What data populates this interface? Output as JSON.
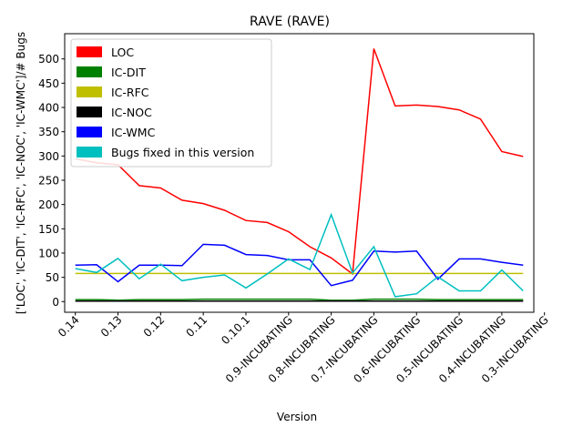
{
  "chart_data": {
    "type": "line",
    "title": "RAVE (RAVE)",
    "xlabel": "Version",
    "ylabel": "['LOC', 'IC-DIT', 'IC-RFC', 'IC-NOC', 'IC-WMC']/# Bugs",
    "ylim": [
      -22,
      552
    ],
    "yticks": [
      0,
      50,
      100,
      150,
      200,
      250,
      300,
      350,
      400,
      450,
      500
    ],
    "xlim": [
      -0.5,
      21.5
    ],
    "xticks": [
      {
        "pos": 0,
        "label": "0.14"
      },
      {
        "pos": 2,
        "label": "0.13"
      },
      {
        "pos": 4,
        "label": "0.12"
      },
      {
        "pos": 6,
        "label": "0.11"
      },
      {
        "pos": 8,
        "label": "0.10.1"
      },
      {
        "pos": 10,
        "label": "0.9-INCUBATING"
      },
      {
        "pos": 12,
        "label": "0.8-INCUBATING"
      },
      {
        "pos": 14,
        "label": "0.7-INCUBATING"
      },
      {
        "pos": 16,
        "label": "0.6-INCUBATING"
      },
      {
        "pos": 18,
        "label": "0.5-INCUBATING"
      },
      {
        "pos": 20,
        "label": "0.4-INCUBATING"
      },
      {
        "pos": 22,
        "label": "0.3-INCUBATING"
      }
    ],
    "x": [
      0,
      1,
      2,
      3,
      4,
      5,
      6,
      7,
      8,
      9,
      10,
      11,
      12,
      13,
      14,
      15,
      16,
      17,
      18,
      19,
      20,
      21
    ],
    "series": [
      {
        "name": "LOC",
        "color": "#ff0000",
        "values": [
          294,
          286,
          282,
          239,
          234,
          209,
          202,
          188,
          167,
          163,
          144,
          113,
          90,
          57,
          521,
          403,
          405,
          402,
          395,
          376,
          309,
          299
        ]
      },
      {
        "name": "IC-DIT",
        "color": "#008000",
        "values": [
          4,
          4,
          3,
          4,
          4,
          4,
          5,
          5,
          5,
          5,
          5,
          5,
          3,
          3,
          5,
          5,
          5,
          4,
          4,
          4,
          4,
          4
        ]
      },
      {
        "name": "IC-RFC",
        "color": "#bfbf00",
        "values": [
          58,
          58,
          58,
          58,
          58,
          58,
          58,
          58,
          58,
          58,
          58,
          58,
          58,
          58,
          58,
          58,
          58,
          58,
          58,
          58,
          58,
          58
        ]
      },
      {
        "name": "IC-NOC",
        "color": "#000000",
        "values": [
          1,
          1,
          1,
          1,
          1,
          1,
          1,
          1,
          1,
          1,
          1,
          1,
          1,
          1,
          1,
          1,
          1,
          1,
          1,
          1,
          1,
          1
        ]
      },
      {
        "name": "IC-WMC",
        "color": "#0000ff",
        "values": [
          75,
          76,
          41,
          75,
          75,
          74,
          118,
          116,
          97,
          95,
          86,
          86,
          33,
          44,
          104,
          102,
          104,
          46,
          88,
          88,
          81,
          75
        ]
      },
      {
        "name": "Bugs fixed in this version",
        "color": "#00bfbf",
        "values": [
          68,
          60,
          89,
          47,
          77,
          43,
          50,
          55,
          28,
          57,
          88,
          66,
          179,
          59,
          113,
          10,
          16,
          51,
          22,
          22,
          65,
          22
        ]
      }
    ],
    "legend_position": "top-left",
    "grid": false
  }
}
